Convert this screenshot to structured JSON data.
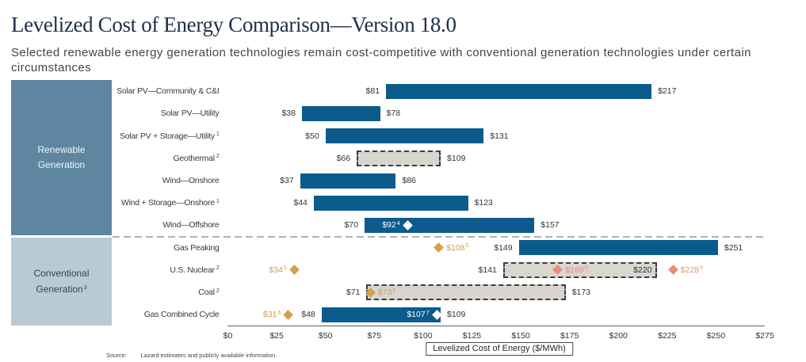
{
  "header": {
    "title": "Levelized Cost of Energy Comparison—Version 18.0",
    "subtitle": "Selected renewable energy generation technologies remain cost-competitive with conventional generation technologies under certain circumstances"
  },
  "footer": {
    "source_label": "Source:",
    "source_text": "Lazard estimates and publicly available information."
  },
  "colors": {
    "bar_blue": "#0B5C8D",
    "renewable_block_bg": "#5F86A0",
    "renewable_block_text": "#F3F6F8",
    "conventional_block_bg": "#B8CAD5",
    "conventional_block_text": "#39434E",
    "range_bar_gray_fill": "#D9D5CF",
    "range_bar_dashed_border": "#3C3C3C",
    "gold": "#D2A046",
    "salmon": "#E98C78",
    "white": "#FFFFFF",
    "divider_gray": "#B2B2B2"
  },
  "chart_data": {
    "type": "bar",
    "orientation": "horizontal-range",
    "xlabel": "Levelized Cost of Energy ($/MWh)",
    "xlim": [
      0,
      275
    ],
    "ticks": [
      {
        "value": 0,
        "label": "$0"
      },
      {
        "value": 25,
        "label": "$25"
      },
      {
        "value": 50,
        "label": "$50"
      },
      {
        "value": 75,
        "label": "$75"
      },
      {
        "value": 100,
        "label": "$100"
      },
      {
        "value": 125,
        "label": "$125"
      },
      {
        "value": 150,
        "label": "$150"
      },
      {
        "value": 175,
        "label": "$175"
      },
      {
        "value": 200,
        "label": "$200"
      },
      {
        "value": 225,
        "label": "$225"
      },
      {
        "value": 250,
        "label": "$250"
      },
      {
        "value": 275,
        "label": "$275"
      }
    ],
    "sections": [
      {
        "name": "Renewable Generation",
        "label_lines": [
          "Renewable",
          "Generation"
        ],
        "sup": "",
        "rows": [
          {
            "label": "Solar PV—Community & C&I",
            "sup": "",
            "low": 81,
            "high": 217,
            "style": "solid",
            "markers": []
          },
          {
            "label": "Solar PV—Utility",
            "sup": "",
            "low": 38,
            "high": 78,
            "style": "solid",
            "markers": []
          },
          {
            "label": "Solar PV + Storage—Utility",
            "sup": "1",
            "low": 50,
            "high": 131,
            "style": "solid",
            "markers": []
          },
          {
            "label": "Geothermal",
            "sup": "2",
            "low": 66,
            "high": 109,
            "style": "dashed",
            "markers": []
          },
          {
            "label": "Wind—Onshore",
            "sup": "",
            "low": 37,
            "high": 86,
            "style": "solid",
            "markers": []
          },
          {
            "label": "Wind + Storage—Onshore",
            "sup": "1",
            "low": 44,
            "high": 123,
            "style": "solid",
            "markers": []
          },
          {
            "label": "Wind—Offshore",
            "sup": "",
            "low": 70,
            "high": 157,
            "style": "solid",
            "markers": [
              {
                "value": 92,
                "sup": "4",
                "color": "white",
                "side": "left"
              }
            ]
          }
        ]
      },
      {
        "name": "Conventional Generation",
        "label_lines": [
          "Conventional",
          "Generation"
        ],
        "sup": "3",
        "rows": [
          {
            "label": "Gas Peaking",
            "sup": "",
            "low": 149,
            "high": 251,
            "style": "solid",
            "markers": [
              {
                "value": 108,
                "sup": "5",
                "color": "gold",
                "side": "right"
              }
            ]
          },
          {
            "label": "U.S. Nuclear",
            "sup": "2",
            "low": 141,
            "high": 220,
            "style": "dashed",
            "high_label_inside": true,
            "markers": [
              {
                "value": 34,
                "sup": "5",
                "color": "gold",
                "side": "left"
              },
              {
                "value": 169,
                "sup": "5",
                "color": "salmon",
                "side": "right"
              },
              {
                "value": 228,
                "sup": "5",
                "color": "salmon",
                "side": "right"
              }
            ]
          },
          {
            "label": "Coal",
            "sup": "2",
            "low": 71,
            "high": 173,
            "style": "dashed",
            "markers": [
              {
                "value": 73,
                "sup": "5",
                "color": "gold",
                "side": "right"
              }
            ]
          },
          {
            "label": "Gas Combined Cycle",
            "sup": "",
            "low": 48,
            "high": 109,
            "style": "solid",
            "markers": [
              {
                "value": 31,
                "sup": "5",
                "color": "gold",
                "side": "left"
              },
              {
                "value": 107,
                "sup": "7",
                "color": "white",
                "side": "left"
              }
            ]
          }
        ]
      }
    ]
  }
}
